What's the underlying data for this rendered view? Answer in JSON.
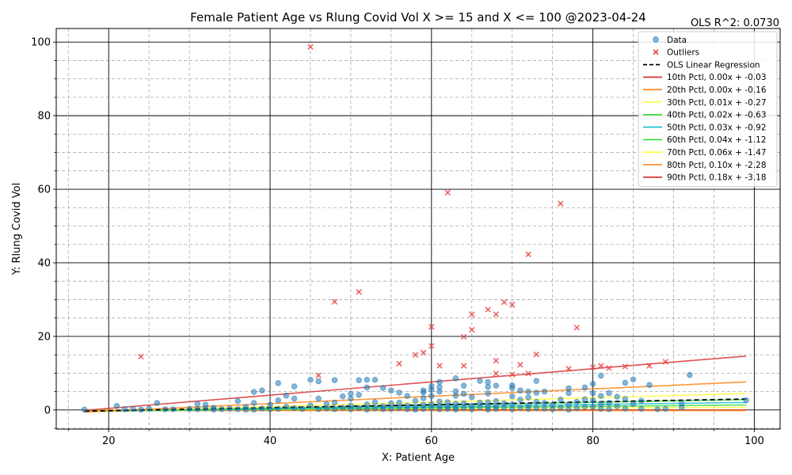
{
  "chart_data": {
    "type": "scatter",
    "title": "Female Patient Age vs Rlung Covid Vol X >= 15 and X <=  100 @2023-04-24",
    "annotation": "OLS R^2: 0.0730",
    "xlabel": "X: Patient Age",
    "ylabel": "Y: Rlung Covid Vol",
    "xlim": [
      13.5,
      103.2
    ],
    "ylim": [
      -5.2,
      103.7
    ],
    "xticks": [
      20,
      40,
      60,
      80,
      100
    ],
    "yticks": [
      0,
      20,
      40,
      60,
      80,
      100
    ],
    "grid": true,
    "legend_position": "top-right",
    "scatter_series": [
      {
        "name": "Data",
        "marker": "circle",
        "color": "#1f77b4",
        "points": [
          [
            17,
            0.1
          ],
          [
            21,
            1.1
          ],
          [
            22,
            0.2
          ],
          [
            23,
            0.3
          ],
          [
            24,
            0.1
          ],
          [
            25,
            0.4
          ],
          [
            26,
            1.9
          ],
          [
            27,
            0.2
          ],
          [
            28,
            0.2
          ],
          [
            30,
            0.3
          ],
          [
            31,
            1.6
          ],
          [
            31,
            0.2
          ],
          [
            32,
            0.4
          ],
          [
            32,
            1.4
          ],
          [
            33,
            0.6
          ],
          [
            33,
            0.1
          ],
          [
            34,
            0.2
          ],
          [
            35,
            0.4
          ],
          [
            36,
            2.4
          ],
          [
            36,
            0.2
          ],
          [
            37,
            0.8
          ],
          [
            37,
            0.1
          ],
          [
            38,
            4.9
          ],
          [
            38,
            1.9
          ],
          [
            38,
            0.1
          ],
          [
            39,
            5.3
          ],
          [
            39,
            0.4
          ],
          [
            40,
            1.4
          ],
          [
            40,
            0.2
          ],
          [
            41,
            7.3
          ],
          [
            41,
            2.6
          ],
          [
            41,
            0.3
          ],
          [
            42,
            3.9
          ],
          [
            42,
            0.9
          ],
          [
            43,
            6.4
          ],
          [
            43,
            3.1
          ],
          [
            43,
            0.5
          ],
          [
            44,
            0.3
          ],
          [
            45,
            8.2
          ],
          [
            45,
            1.2
          ],
          [
            46,
            7.8
          ],
          [
            46,
            3.1
          ],
          [
            46,
            0.2
          ],
          [
            47,
            1.6
          ],
          [
            47,
            0.4
          ],
          [
            48,
            8.1
          ],
          [
            48,
            2.0
          ],
          [
            48,
            0.2
          ],
          [
            49,
            3.7
          ],
          [
            49,
            0.6
          ],
          [
            50,
            4.4
          ],
          [
            50,
            3.1
          ],
          [
            50,
            1.2
          ],
          [
            50,
            0.2
          ],
          [
            51,
            8.1
          ],
          [
            51,
            4.1
          ],
          [
            51,
            0.5
          ],
          [
            52,
            8.2
          ],
          [
            52,
            6.1
          ],
          [
            52,
            1.5
          ],
          [
            52,
            0.1
          ],
          [
            53,
            8.2
          ],
          [
            53,
            2.1
          ],
          [
            53,
            0.4
          ],
          [
            54,
            6.0
          ],
          [
            54,
            1.0
          ],
          [
            54,
            0.2
          ],
          [
            55,
            5.3
          ],
          [
            55,
            1.8
          ],
          [
            55,
            0.3
          ],
          [
            56,
            4.7
          ],
          [
            56,
            2.0
          ],
          [
            56,
            0.5
          ],
          [
            57,
            3.8
          ],
          [
            57,
            1.2
          ],
          [
            57,
            0.2
          ],
          [
            58,
            2.5
          ],
          [
            58,
            0.8
          ],
          [
            58,
            0.1
          ],
          [
            59,
            5.3
          ],
          [
            59,
            4.8
          ],
          [
            59,
            3.2
          ],
          [
            59,
            1.4
          ],
          [
            59,
            0.3
          ],
          [
            60,
            6.5
          ],
          [
            60,
            5.5
          ],
          [
            60,
            3.8
          ],
          [
            60,
            1.6
          ],
          [
            60,
            0.5
          ],
          [
            61,
            7.6
          ],
          [
            61,
            6.2
          ],
          [
            61,
            5.0
          ],
          [
            61,
            2.3
          ],
          [
            61,
            1.1
          ],
          [
            61,
            0.2
          ],
          [
            62,
            2.1
          ],
          [
            62,
            1.0
          ],
          [
            62,
            0.3
          ],
          [
            63,
            8.6
          ],
          [
            63,
            5.1
          ],
          [
            63,
            3.9
          ],
          [
            63,
            1.7
          ],
          [
            63,
            0.6
          ],
          [
            63,
            0.1
          ],
          [
            64,
            6.6
          ],
          [
            64,
            4.4
          ],
          [
            64,
            1.8
          ],
          [
            64,
            0.5
          ],
          [
            65,
            3.5
          ],
          [
            65,
            1.1
          ],
          [
            65,
            0.2
          ],
          [
            66,
            7.9
          ],
          [
            66,
            2.0
          ],
          [
            66,
            0.7
          ],
          [
            67,
            7.6
          ],
          [
            67,
            6.3
          ],
          [
            67,
            4.5
          ],
          [
            67,
            2.1
          ],
          [
            67,
            0.9
          ],
          [
            67,
            0.1
          ],
          [
            68,
            6.6
          ],
          [
            68,
            2.4
          ],
          [
            68,
            1.0
          ],
          [
            68,
            0.3
          ],
          [
            69,
            1.8
          ],
          [
            69,
            0.6
          ],
          [
            70,
            6.7
          ],
          [
            70,
            6.0
          ],
          [
            70,
            3.7
          ],
          [
            70,
            1.5
          ],
          [
            70,
            0.2
          ],
          [
            71,
            5.3
          ],
          [
            71,
            2.8
          ],
          [
            71,
            0.6
          ],
          [
            72,
            5.0
          ],
          [
            72,
            3.4
          ],
          [
            72,
            1.2
          ],
          [
            72,
            0.3
          ],
          [
            73,
            7.9
          ],
          [
            73,
            4.7
          ],
          [
            73,
            2.2
          ],
          [
            73,
            0.5
          ],
          [
            74,
            5.0
          ],
          [
            74,
            1.9
          ],
          [
            74,
            0.4
          ],
          [
            75,
            1.3
          ],
          [
            75,
            0.2
          ],
          [
            76,
            2.8
          ],
          [
            76,
            0.6
          ],
          [
            77,
            5.9
          ],
          [
            77,
            4.6
          ],
          [
            77,
            1.4
          ],
          [
            77,
            0.1
          ],
          [
            78,
            2.2
          ],
          [
            78,
            0.5
          ],
          [
            79,
            6.1
          ],
          [
            79,
            2.9
          ],
          [
            79,
            0.9
          ],
          [
            80,
            7.1
          ],
          [
            80,
            4.6
          ],
          [
            80,
            2.6
          ],
          [
            80,
            0.8
          ],
          [
            81,
            9.3
          ],
          [
            81,
            3.8
          ],
          [
            81,
            1.6
          ],
          [
            81,
            0.3
          ],
          [
            82,
            4.6
          ],
          [
            82,
            1.9
          ],
          [
            82,
            0.2
          ],
          [
            83,
            3.6
          ],
          [
            83,
            1.0
          ],
          [
            84,
            7.4
          ],
          [
            84,
            3.0
          ],
          [
            84,
            0.4
          ],
          [
            85,
            8.3
          ],
          [
            85,
            1.6
          ],
          [
            86,
            2.5
          ],
          [
            86,
            0.3
          ],
          [
            87,
            6.8
          ],
          [
            88,
            0.2
          ],
          [
            89,
            0.3
          ],
          [
            91,
            1.8
          ],
          [
            91,
            0.7
          ],
          [
            92,
            9.5
          ],
          [
            99,
            2.6
          ]
        ]
      },
      {
        "name": "Outliers",
        "marker": "x",
        "color": "#e8423f",
        "points": [
          [
            45,
            98.7
          ],
          [
            62,
            59.1
          ],
          [
            76,
            56.1
          ],
          [
            72,
            42.3
          ],
          [
            51,
            32.1
          ],
          [
            48,
            29.4
          ],
          [
            69,
            29.3
          ],
          [
            70,
            28.6
          ],
          [
            67,
            27.3
          ],
          [
            65,
            26.0
          ],
          [
            68,
            26.0
          ],
          [
            60,
            22.6
          ],
          [
            78,
            22.4
          ],
          [
            65,
            21.8
          ],
          [
            64,
            19.9
          ],
          [
            60,
            17.4
          ],
          [
            59,
            15.6
          ],
          [
            58,
            15.0
          ],
          [
            73,
            15.1
          ],
          [
            24,
            14.5
          ],
          [
            68,
            13.4
          ],
          [
            89,
            13.1
          ],
          [
            56,
            12.6
          ],
          [
            61,
            12.0
          ],
          [
            64,
            12.0
          ],
          [
            71,
            12.3
          ],
          [
            80,
            11.6
          ],
          [
            81,
            12.0
          ],
          [
            82,
            11.4
          ],
          [
            84,
            11.8
          ],
          [
            87,
            12.0
          ],
          [
            77,
            11.2
          ],
          [
            46,
            9.4
          ],
          [
            68,
            9.9
          ],
          [
            70,
            9.6
          ],
          [
            72,
            9.9
          ]
        ]
      }
    ],
    "lines": [
      {
        "name": "OLS Linear Regression",
        "slope": 0.04,
        "intercept": -1.0,
        "color": "#000000",
        "dash": true
      },
      {
        "name": "10th Pctl, 0.00x + -0.03",
        "slope": 0.0,
        "intercept": -0.03,
        "color": "#d62728",
        "dash": false
      },
      {
        "name": "20th Pctl, 0.00x + -0.16",
        "slope": 0.0,
        "intercept": -0.16,
        "color": "#ff7f0e",
        "dash": false
      },
      {
        "name": "30th Pctl, 0.01x + -0.27",
        "slope": 0.01,
        "intercept": -0.27,
        "color": "#ffff33",
        "dash": false
      },
      {
        "name": "40th Pctl, 0.02x + -0.63",
        "slope": 0.02,
        "intercept": -0.63,
        "color": "#33dd33",
        "dash": false
      },
      {
        "name": "50th Pctl, 0.03x + -0.92",
        "slope": 0.03,
        "intercept": -0.92,
        "color": "#17becf",
        "dash": false
      },
      {
        "name": "60th Pctl, 0.04x + -1.12",
        "slope": 0.04,
        "intercept": -1.12,
        "color": "#33dd33",
        "dash": false
      },
      {
        "name": "70th Pctl, 0.06x + -1.47",
        "slope": 0.06,
        "intercept": -1.47,
        "color": "#ffff33",
        "dash": false
      },
      {
        "name": "80th Pctl, 0.10x + -2.28",
        "slope": 0.1,
        "intercept": -2.28,
        "color": "#ff7f0e",
        "dash": false
      },
      {
        "name": "90th Pctl, 0.18x + -3.18",
        "slope": 0.18,
        "intercept": -3.18,
        "color": "#d62728",
        "dash": false
      }
    ],
    "line_x_range": [
      17,
      99
    ]
  }
}
